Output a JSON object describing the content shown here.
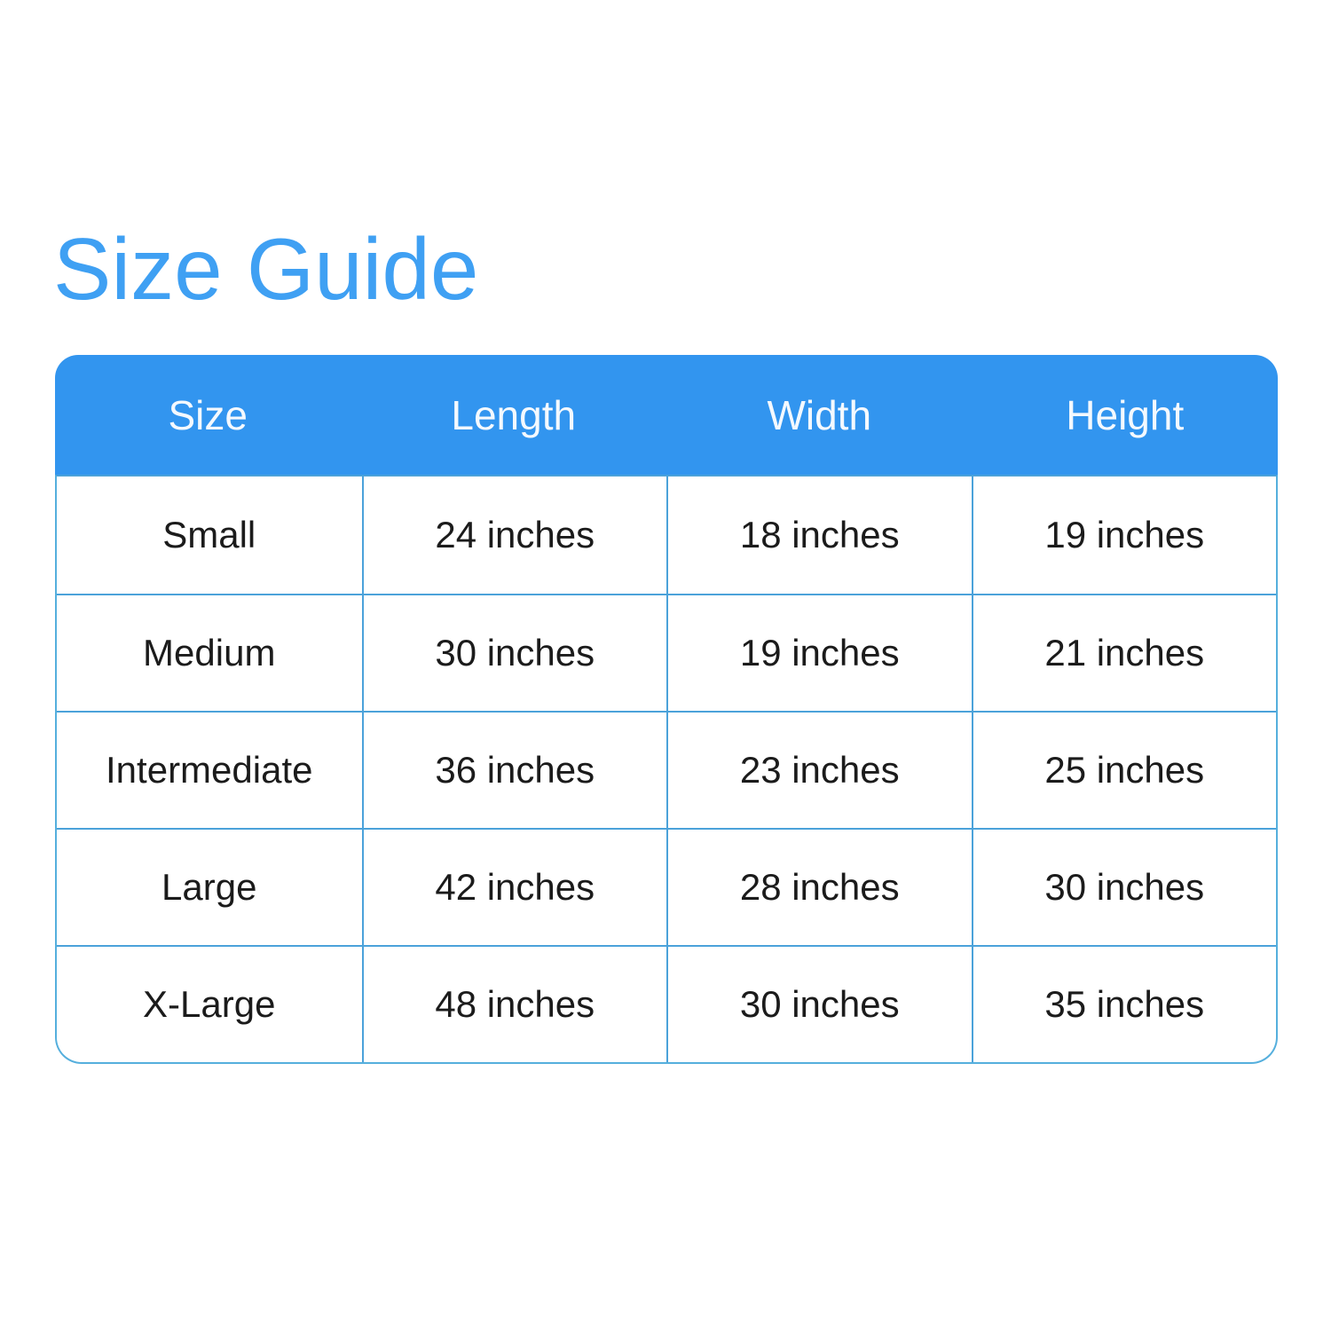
{
  "page": {
    "title": "Size Guide"
  },
  "colors": {
    "title_blue": "#3FA0F3",
    "header_blue": "#3295EF",
    "grid_line_blue": "#4BA2DA",
    "outer_border_blue": "#55AFDD",
    "header_text": "#F4F9FE",
    "cell_text": "#1B1B1B",
    "background": "#FFFFFF"
  },
  "table": {
    "headers": [
      "Size",
      "Length",
      "Width",
      "Height"
    ],
    "rows": [
      {
        "size": "Small",
        "length": "24 inches",
        "width": "18 inches",
        "height": "19 inches"
      },
      {
        "size": "Medium",
        "length": "30 inches",
        "width": "19 inches",
        "height": "21 inches"
      },
      {
        "size": "Intermediate",
        "length": "36 inches",
        "width": "23 inches",
        "height": "25 inches"
      },
      {
        "size": "Large",
        "length": "42 inches",
        "width": "28 inches",
        "height": "30 inches"
      },
      {
        "size": "X-Large",
        "length": "48 inches",
        "width": "30 inches",
        "height": "35 inches"
      }
    ]
  },
  "chart_data": {
    "type": "table",
    "title": "Size Guide",
    "columns": [
      "Size",
      "Length",
      "Width",
      "Height"
    ],
    "rows": [
      [
        "Small",
        "24 inches",
        "18 inches",
        "19 inches"
      ],
      [
        "Medium",
        "30 inches",
        "19 inches",
        "21 inches"
      ],
      [
        "Intermediate",
        "36 inches",
        "23 inches",
        "25 inches"
      ],
      [
        "Large",
        "42 inches",
        "28 inches",
        "30 inches"
      ],
      [
        "X-Large",
        "48 inches",
        "30 inches",
        "35 inches"
      ]
    ],
    "units": "inches",
    "layout": {
      "header_fill": "#3295EF",
      "grid": true,
      "rounded_corners": true
    }
  }
}
